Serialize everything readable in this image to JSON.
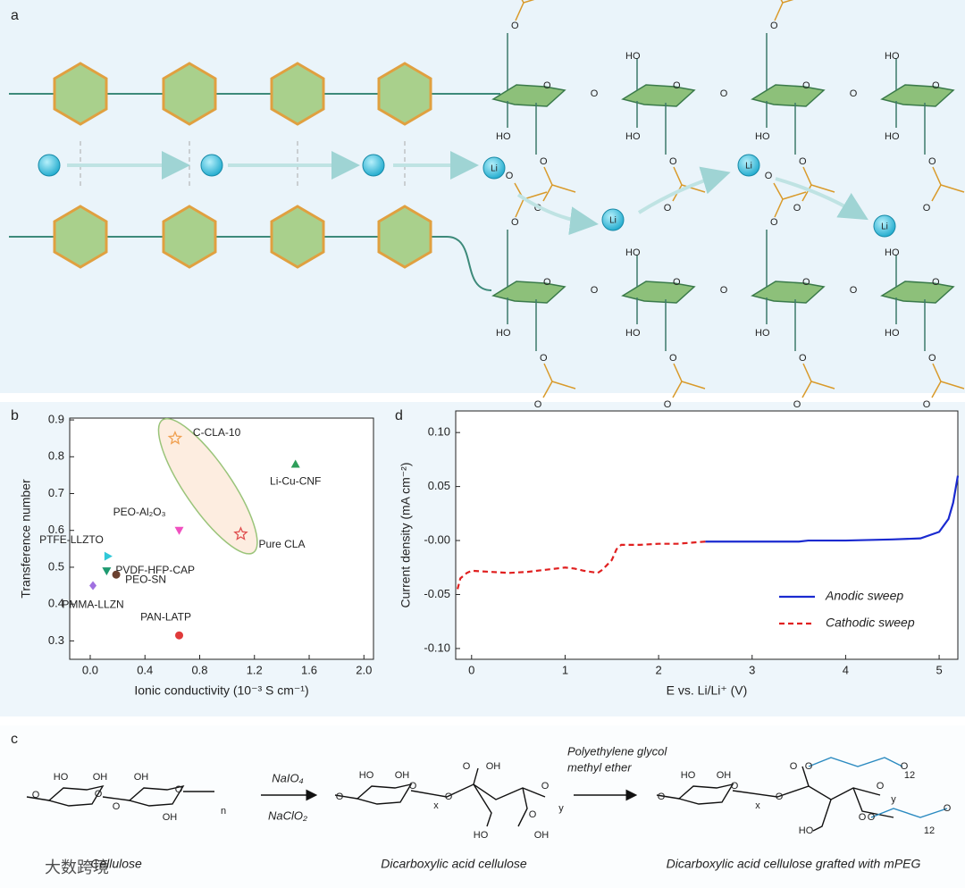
{
  "panel_labels": [
    "a",
    "b",
    "c",
    "d"
  ],
  "diagram": {
    "li_label": "Li",
    "ring_oxygen": "O",
    "hydroxyl": "HO",
    "acetate_oxygen": "O",
    "linker_oxygen": "O"
  },
  "chart_data": [
    {
      "type": "scatter",
      "x_label": "Ionic conductivity (10⁻³ S cm⁻¹)",
      "y_label": "Transference number",
      "xlim": [
        -0.15,
        2.07
      ],
      "ylim": [
        0.25,
        0.905
      ],
      "xticks": [
        {
          "value": 0.0,
          "label": "0.0"
        },
        0.4,
        0.8,
        1.2,
        1.6,
        {
          "value": 2.0,
          "label": "2.0"
        }
      ],
      "yticks": [
        0.3,
        0.4,
        0.5,
        0.6,
        0.7,
        0.8,
        0.9
      ],
      "series": [
        {
          "name": "C-CLA-10",
          "color": "#f0a050",
          "marker": "star-open",
          "x": [
            0.62
          ],
          "values": [
            0.85
          ]
        },
        {
          "name": "Pure CLA",
          "color": "#e05050",
          "marker": "star-open",
          "x": [
            1.1
          ],
          "values": [
            0.59
          ]
        },
        {
          "name": "Li-Cu-CNF",
          "color": "#2e9e5a",
          "marker": "triangle-up",
          "x": [
            1.5
          ],
          "values": [
            0.78
          ]
        },
        {
          "name": "PEO-Al₂O₃",
          "color": "#f050c0",
          "marker": "triangle-down",
          "x": [
            0.65
          ],
          "values": [
            0.6
          ]
        },
        {
          "name": "PTFE-LLZTO",
          "color": "#30c8d8",
          "marker": "triangle-right",
          "x": [
            0.13
          ],
          "values": [
            0.53
          ]
        },
        {
          "name": "PVDF-HFP-CAP",
          "color": "#1e9a70",
          "marker": "triangle-down",
          "x": [
            0.12
          ],
          "values": [
            0.49
          ]
        },
        {
          "name": "PEO-SN",
          "color": "#6a4030",
          "marker": "circle",
          "x": [
            0.19
          ],
          "values": [
            0.48
          ]
        },
        {
          "name": "PMMA-LLZN",
          "color": "#a070e0",
          "marker": "diamond",
          "x": [
            0.02
          ],
          "values": [
            0.45
          ]
        },
        {
          "name": "PAN-LATP",
          "color": "#e03a3a",
          "marker": "circle",
          "x": [
            0.65
          ],
          "values": [
            0.315
          ]
        }
      ]
    },
    {
      "type": "line",
      "x_label": "E vs. Li/Li⁺ (V)",
      "y_label": "Current density (mA cm⁻²)",
      "xlim": [
        -0.17,
        5.2
      ],
      "ylim": [
        -0.11,
        0.12
      ],
      "xticks": [
        0,
        1,
        2,
        3,
        4,
        5
      ],
      "yticks": [
        {
          "value": 0.1,
          "label": "0.10"
        },
        0.05,
        {
          "value": 0,
          "label": "-0.00"
        },
        -0.05,
        {
          "value": -0.1,
          "label": "-0.10"
        }
      ],
      "legend": "lower right",
      "series": [
        {
          "name": "Anodic sweep",
          "color": "#1a2ad0",
          "style": "solid",
          "x": [
            2.5,
            3.0,
            3.5,
            3.6,
            4.0,
            4.5,
            4.8,
            5.0,
            5.1,
            5.15,
            5.2
          ],
          "values": [
            -0.001,
            -0.001,
            -0.001,
            0.0,
            0.0,
            0.001,
            0.002,
            0.008,
            0.02,
            0.035,
            0.06
          ]
        },
        {
          "name": "Cathodic sweep",
          "color": "#e02020",
          "style": "dashed",
          "x": [
            -0.15,
            -0.12,
            -0.05,
            0,
            0.2,
            0.4,
            0.6,
            0.8,
            1.0,
            1.1,
            1.2,
            1.35,
            1.4,
            1.5,
            1.55,
            1.6,
            1.8,
            2.0,
            2.2,
            2.5
          ],
          "values": [
            -0.045,
            -0.035,
            -0.03,
            -0.028,
            -0.029,
            -0.03,
            -0.029,
            -0.027,
            -0.025,
            -0.026,
            -0.028,
            -0.03,
            -0.027,
            -0.018,
            -0.008,
            -0.004,
            -0.004,
            -0.003,
            -0.003,
            -0.001
          ]
        }
      ]
    }
  ],
  "scheme": {
    "reagents_1": [
      "NaIO₄",
      "NaClO₂"
    ],
    "reagent_2": [
      "Polyethylene glycol",
      "methyl ether"
    ],
    "molecules": [
      {
        "caption": "Cellulose",
        "atoms": [
          "HO",
          "OH",
          "OH",
          "O",
          "O",
          "O",
          "O",
          "OH",
          "n"
        ]
      },
      {
        "caption": "Dicarboxylic acid cellulose",
        "atoms": [
          "HO",
          "OH",
          "O",
          "O",
          "x",
          "O",
          "O",
          "OH",
          "HO",
          "O",
          "OH",
          "O",
          "y"
        ]
      },
      {
        "caption": "Dicarboxylic acid cellulose grafted with mPEG",
        "atoms": [
          "HO",
          "OH",
          "O",
          "O",
          "x",
          "O",
          "O",
          "O",
          "O",
          "12",
          "HO",
          "O",
          "O",
          "O",
          "12",
          "O",
          "y"
        ]
      }
    ]
  },
  "watermark": "大数跨境"
}
